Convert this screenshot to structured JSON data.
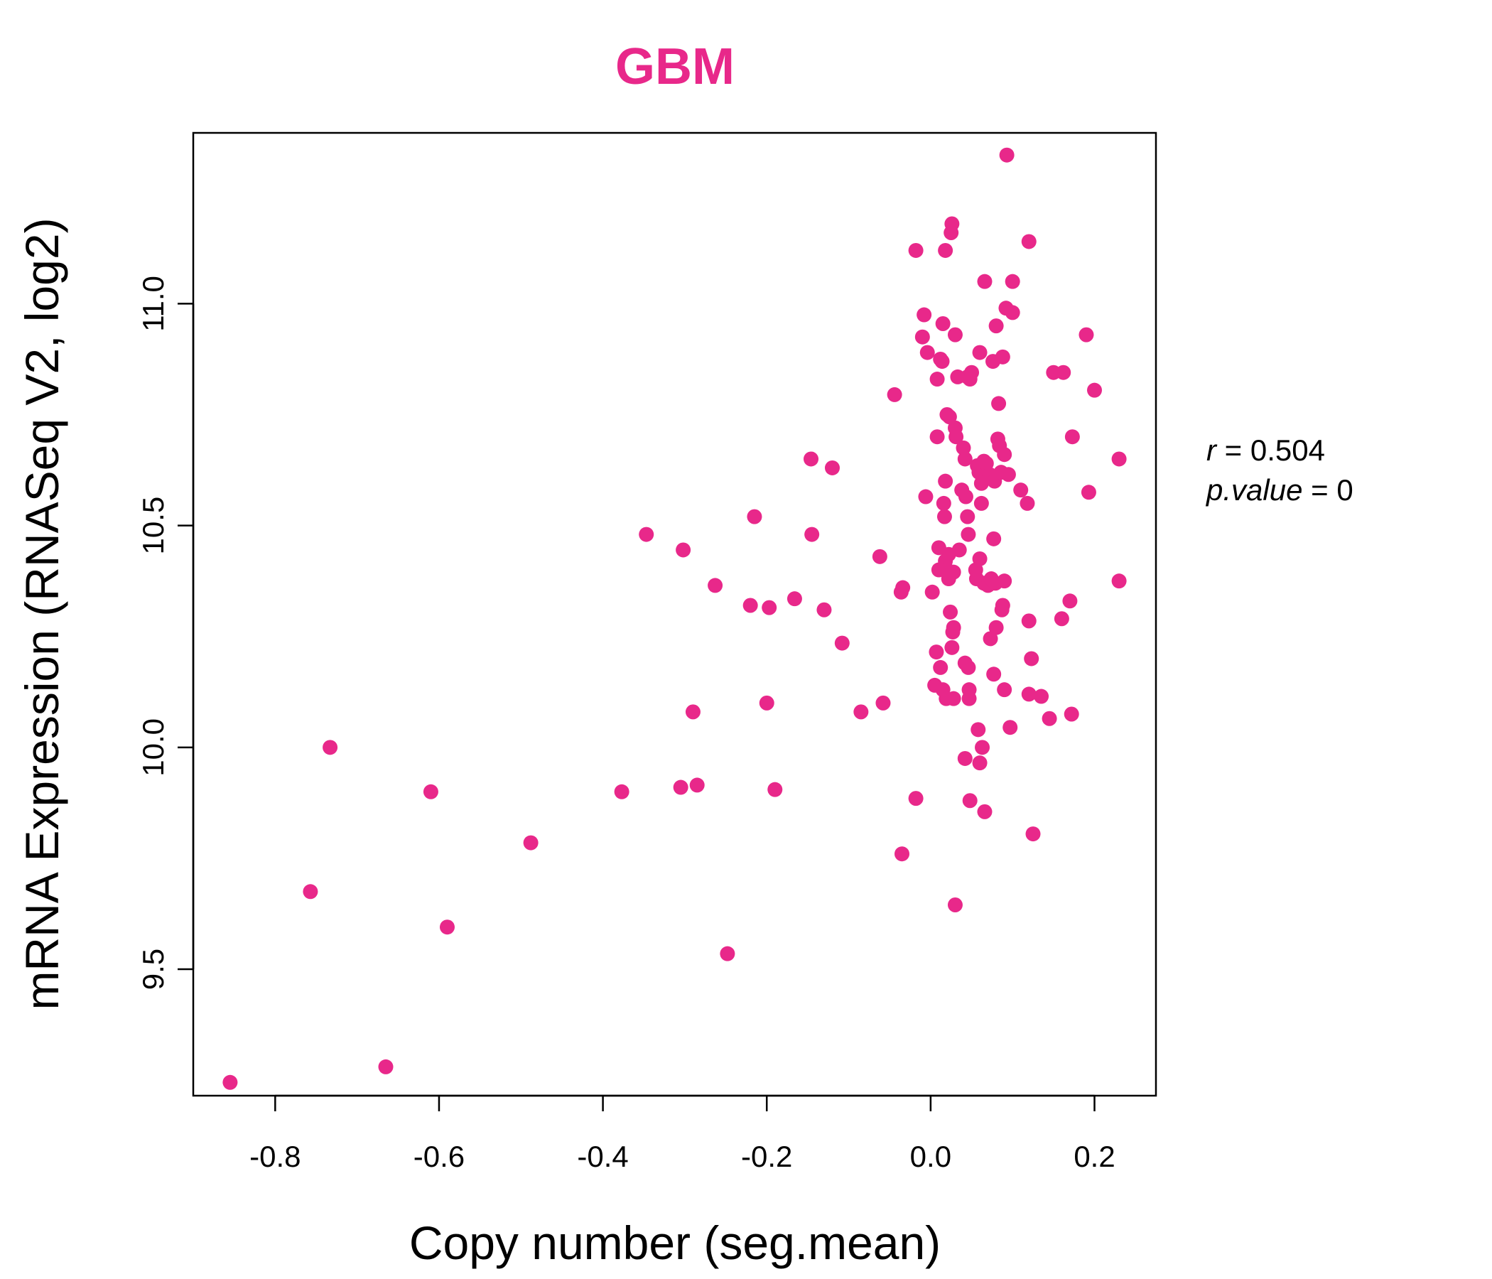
{
  "chart_data": {
    "type": "scatter",
    "title": "GBM",
    "title_color": "#E8288A",
    "point_color": "#E8288A",
    "xlabel": "Copy number (seg.mean)",
    "ylabel": "mRNA Expression (RNASeq V2, log2)",
    "xlim": [
      -0.9,
      0.275
    ],
    "ylim": [
      9.215,
      11.385
    ],
    "xticks": [
      -0.8,
      -0.6,
      -0.4,
      -0.2,
      0.0,
      0.2
    ],
    "xtick_labels": [
      "-0.8",
      "-0.6",
      "-0.4",
      "-0.2",
      "0.0",
      "0.2"
    ],
    "yticks": [
      9.5,
      10.0,
      10.5,
      11.0
    ],
    "ytick_labels": [
      "9.5",
      "10.0",
      "10.5",
      "11.0"
    ],
    "grid": false,
    "legend": "none",
    "stats": {
      "r_label": "r",
      "r_value": "0.504",
      "p_label": "p.value",
      "p_value": "0"
    },
    "points": [
      [
        -0.855,
        9.245
      ],
      [
        -0.665,
        9.28
      ],
      [
        -0.757,
        9.675
      ],
      [
        -0.733,
        10.0
      ],
      [
        -0.61,
        9.9
      ],
      [
        -0.59,
        9.595
      ],
      [
        -0.488,
        9.785
      ],
      [
        -0.377,
        9.9
      ],
      [
        -0.347,
        10.48
      ],
      [
        -0.305,
        9.91
      ],
      [
        -0.302,
        10.445
      ],
      [
        -0.29,
        10.08
      ],
      [
        -0.285,
        9.915
      ],
      [
        -0.263,
        10.365
      ],
      [
        -0.248,
        9.535
      ],
      [
        -0.22,
        10.32
      ],
      [
        -0.215,
        10.52
      ],
      [
        -0.2,
        10.1
      ],
      [
        -0.197,
        10.315
      ],
      [
        -0.19,
        9.905
      ],
      [
        -0.166,
        10.335
      ],
      [
        -0.146,
        10.65
      ],
      [
        -0.145,
        10.48
      ],
      [
        -0.13,
        10.31
      ],
      [
        -0.12,
        10.63
      ],
      [
        -0.108,
        10.235
      ],
      [
        -0.085,
        10.08
      ],
      [
        -0.062,
        10.43
      ],
      [
        -0.058,
        10.1
      ],
      [
        -0.044,
        10.795
      ],
      [
        -0.036,
        10.35
      ],
      [
        -0.034,
        10.36
      ],
      [
        -0.035,
        9.76
      ],
      [
        -0.018,
        9.885
      ],
      [
        -0.018,
        11.12
      ],
      [
        -0.01,
        10.925
      ],
      [
        -0.008,
        10.975
      ],
      [
        -0.006,
        10.565
      ],
      [
        -0.004,
        10.89
      ],
      [
        0.002,
        10.35
      ],
      [
        0.005,
        10.14
      ],
      [
        0.007,
        10.215
      ],
      [
        0.008,
        10.83
      ],
      [
        0.008,
        10.7
      ],
      [
        0.01,
        10.45
      ],
      [
        0.01,
        10.4
      ],
      [
        0.012,
        10.875
      ],
      [
        0.012,
        10.18
      ],
      [
        0.014,
        10.87
      ],
      [
        0.015,
        10.955
      ],
      [
        0.015,
        10.13
      ],
      [
        0.016,
        10.55
      ],
      [
        0.017,
        10.52
      ],
      [
        0.018,
        10.6
      ],
      [
        0.018,
        11.12
      ],
      [
        0.018,
        10.42
      ],
      [
        0.019,
        10.11
      ],
      [
        0.02,
        10.75
      ],
      [
        0.02,
        10.4
      ],
      [
        0.022,
        10.435
      ],
      [
        0.022,
        10.38
      ],
      [
        0.023,
        10.745
      ],
      [
        0.024,
        10.305
      ],
      [
        0.025,
        11.16
      ],
      [
        0.026,
        11.18
      ],
      [
        0.026,
        10.225
      ],
      [
        0.027,
        10.26
      ],
      [
        0.028,
        10.27
      ],
      [
        0.028,
        10.395
      ],
      [
        0.028,
        10.11
      ],
      [
        0.03,
        10.72
      ],
      [
        0.03,
        10.93
      ],
      [
        0.03,
        9.645
      ],
      [
        0.031,
        10.7
      ],
      [
        0.033,
        10.835
      ],
      [
        0.035,
        10.445
      ],
      [
        0.038,
        10.58
      ],
      [
        0.04,
        10.675
      ],
      [
        0.042,
        10.65
      ],
      [
        0.042,
        10.19
      ],
      [
        0.042,
        9.975
      ],
      [
        0.043,
        10.565
      ],
      [
        0.045,
        10.835
      ],
      [
        0.045,
        10.52
      ],
      [
        0.046,
        10.48
      ],
      [
        0.046,
        10.18
      ],
      [
        0.047,
        10.13
      ],
      [
        0.047,
        10.11
      ],
      [
        0.048,
        10.83
      ],
      [
        0.048,
        9.88
      ],
      [
        0.05,
        10.845
      ],
      [
        0.055,
        10.4
      ],
      [
        0.056,
        10.38
      ],
      [
        0.057,
        10.635
      ],
      [
        0.058,
        10.04
      ],
      [
        0.059,
        10.62
      ],
      [
        0.06,
        10.425
      ],
      [
        0.06,
        10.89
      ],
      [
        0.06,
        9.965
      ],
      [
        0.062,
        10.595
      ],
      [
        0.062,
        10.55
      ],
      [
        0.063,
        10.0
      ],
      [
        0.065,
        10.645
      ],
      [
        0.065,
        10.37
      ],
      [
        0.066,
        11.05
      ],
      [
        0.066,
        9.855
      ],
      [
        0.068,
        10.64
      ],
      [
        0.07,
        10.365
      ],
      [
        0.072,
        10.615
      ],
      [
        0.073,
        10.245
      ],
      [
        0.074,
        10.38
      ],
      [
        0.076,
        10.87
      ],
      [
        0.077,
        10.47
      ],
      [
        0.077,
        10.165
      ],
      [
        0.078,
        10.6
      ],
      [
        0.079,
        10.37
      ],
      [
        0.08,
        10.95
      ],
      [
        0.08,
        10.27
      ],
      [
        0.082,
        10.695
      ],
      [
        0.083,
        10.775
      ],
      [
        0.084,
        10.68
      ],
      [
        0.086,
        10.62
      ],
      [
        0.087,
        10.31
      ],
      [
        0.088,
        10.32
      ],
      [
        0.088,
        10.88
      ],
      [
        0.09,
        10.66
      ],
      [
        0.09,
        10.375
      ],
      [
        0.09,
        10.13
      ],
      [
        0.092,
        10.99
      ],
      [
        0.093,
        11.335
      ],
      [
        0.095,
        10.615
      ],
      [
        0.097,
        10.045
      ],
      [
        0.1,
        10.98
      ],
      [
        0.1,
        11.05
      ],
      [
        0.11,
        10.58
      ],
      [
        0.118,
        10.55
      ],
      [
        0.12,
        10.285
      ],
      [
        0.12,
        10.12
      ],
      [
        0.12,
        11.14
      ],
      [
        0.123,
        10.2
      ],
      [
        0.125,
        9.805
      ],
      [
        0.135,
        10.115
      ],
      [
        0.145,
        10.065
      ],
      [
        0.15,
        10.845
      ],
      [
        0.16,
        10.29
      ],
      [
        0.162,
        10.845
      ],
      [
        0.17,
        10.33
      ],
      [
        0.172,
        10.075
      ],
      [
        0.173,
        10.7
      ],
      [
        0.19,
        10.93
      ],
      [
        0.193,
        10.575
      ],
      [
        0.2,
        10.805
      ],
      [
        0.23,
        10.65
      ],
      [
        0.23,
        10.375
      ]
    ]
  }
}
